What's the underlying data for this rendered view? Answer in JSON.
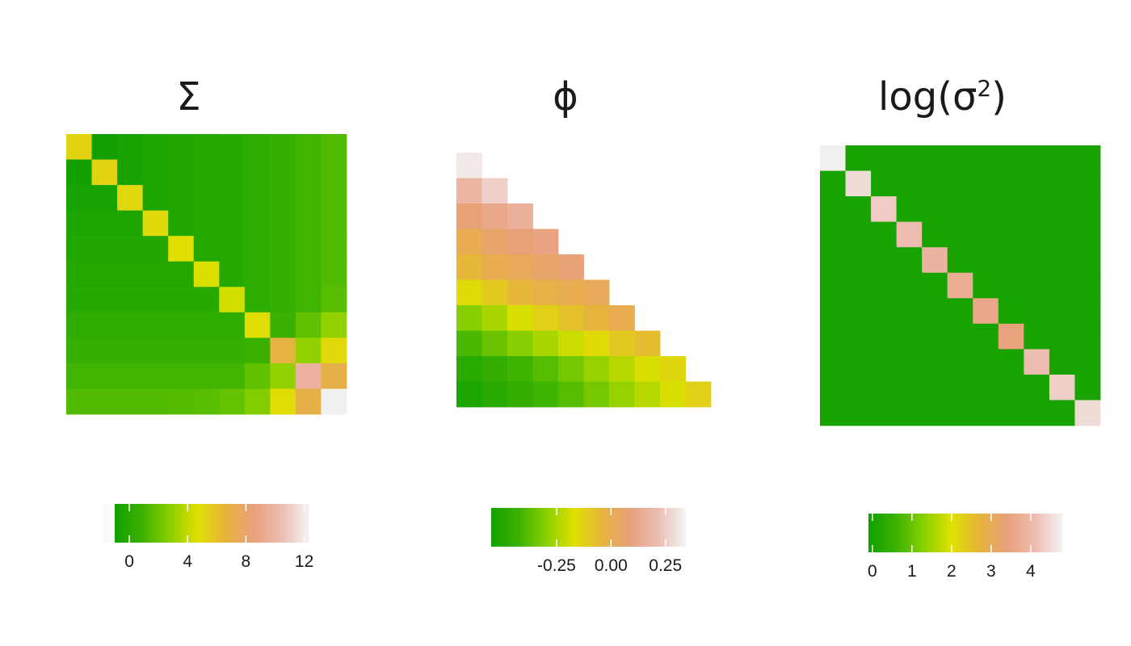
{
  "palette": [
    "#12a000",
    "#3cb200",
    "#8ad000",
    "#e0e000",
    "#e6b43c",
    "#e8a07a",
    "#ecbcb0",
    "#f2f2f2"
  ],
  "chart_data": [
    {
      "type": "heatmap",
      "title": "Σ",
      "shape": "full",
      "range": [
        -1,
        12.3
      ],
      "values": [
        [
          5.2,
          -1.0,
          -0.7,
          -0.5,
          -0.3,
          -0.2,
          0.0,
          0.3,
          0.6,
          1.0,
          1.4
        ],
        [
          -1.0,
          5.2,
          -0.7,
          -0.5,
          -0.3,
          -0.2,
          0.0,
          0.3,
          0.6,
          1.0,
          1.4
        ],
        [
          -0.7,
          -0.7,
          5.1,
          -0.5,
          -0.3,
          -0.2,
          0.0,
          0.3,
          0.6,
          1.0,
          1.4
        ],
        [
          -0.5,
          -0.5,
          -0.5,
          5.0,
          -0.3,
          -0.2,
          0.0,
          0.3,
          0.6,
          1.0,
          1.4
        ],
        [
          -0.3,
          -0.3,
          -0.3,
          -0.3,
          4.8,
          -0.2,
          0.0,
          0.3,
          0.6,
          1.0,
          1.4
        ],
        [
          -0.2,
          -0.2,
          -0.2,
          -0.2,
          -0.2,
          4.6,
          0.0,
          0.3,
          0.6,
          1.0,
          1.4
        ],
        [
          0.0,
          0.0,
          0.0,
          0.0,
          0.0,
          0.0,
          4.4,
          0.3,
          0.6,
          1.0,
          1.6
        ],
        [
          0.3,
          0.3,
          0.3,
          0.3,
          0.3,
          0.3,
          0.3,
          4.9,
          0.8,
          1.8,
          3.0
        ],
        [
          0.6,
          0.6,
          0.6,
          0.6,
          0.6,
          0.6,
          0.6,
          0.8,
          6.8,
          3.0,
          5.0
        ],
        [
          1.0,
          1.0,
          1.0,
          1.0,
          1.0,
          1.0,
          1.0,
          1.8,
          3.0,
          9.8,
          7.0
        ],
        [
          1.4,
          1.4,
          1.4,
          1.4,
          1.5,
          1.6,
          1.9,
          2.6,
          4.9,
          7.0,
          12.2
        ]
      ],
      "colorbar": {
        "ticks": [
          0,
          4,
          8,
          12
        ],
        "labels": [
          "0",
          "4",
          "8",
          "12"
        ]
      }
    },
    {
      "type": "heatmap",
      "title": "ϕ",
      "shape": "lower-triangular",
      "range": [
        -0.55,
        0.34
      ],
      "values": [
        [
          0.32
        ],
        [
          0.18,
          0.26
        ],
        [
          0.08,
          0.12,
          0.16
        ],
        [
          0.0,
          0.05,
          0.08,
          0.1
        ],
        [
          -0.05,
          0.0,
          0.02,
          0.05,
          0.08
        ],
        [
          -0.15,
          -0.1,
          -0.05,
          -0.02,
          0.0,
          0.02
        ],
        [
          -0.3,
          -0.25,
          -0.18,
          -0.12,
          -0.08,
          -0.04,
          0.0
        ],
        [
          -0.4,
          -0.35,
          -0.3,
          -0.25,
          -0.2,
          -0.15,
          -0.1,
          -0.07
        ],
        [
          -0.48,
          -0.45,
          -0.42,
          -0.38,
          -0.33,
          -0.28,
          -0.23,
          -0.18,
          -0.14
        ],
        [
          -0.52,
          -0.48,
          -0.45,
          -0.42,
          -0.38,
          -0.33,
          -0.28,
          -0.23,
          -0.18,
          -0.12
        ]
      ],
      "colorbar": {
        "ticks": [
          -0.25,
          0.0,
          0.25
        ],
        "labels": [
          "-0.25",
          "0.00",
          "0.25"
        ]
      }
    },
    {
      "type": "heatmap",
      "title": "log",
      "title_sub": "σ",
      "title_sup": "2",
      "shape": "diagonal",
      "range": [
        -0.1,
        4.8
      ],
      "diagonal": [
        4.78,
        4.5,
        4.3,
        4.1,
        3.9,
        3.75,
        3.6,
        3.45,
        4.1,
        4.35,
        4.5
      ],
      "off_diagonal": 0,
      "colorbar": {
        "ticks": [
          0,
          1,
          2,
          3,
          4
        ],
        "labels": [
          "0",
          "1",
          "2",
          "3",
          "4"
        ]
      }
    }
  ]
}
